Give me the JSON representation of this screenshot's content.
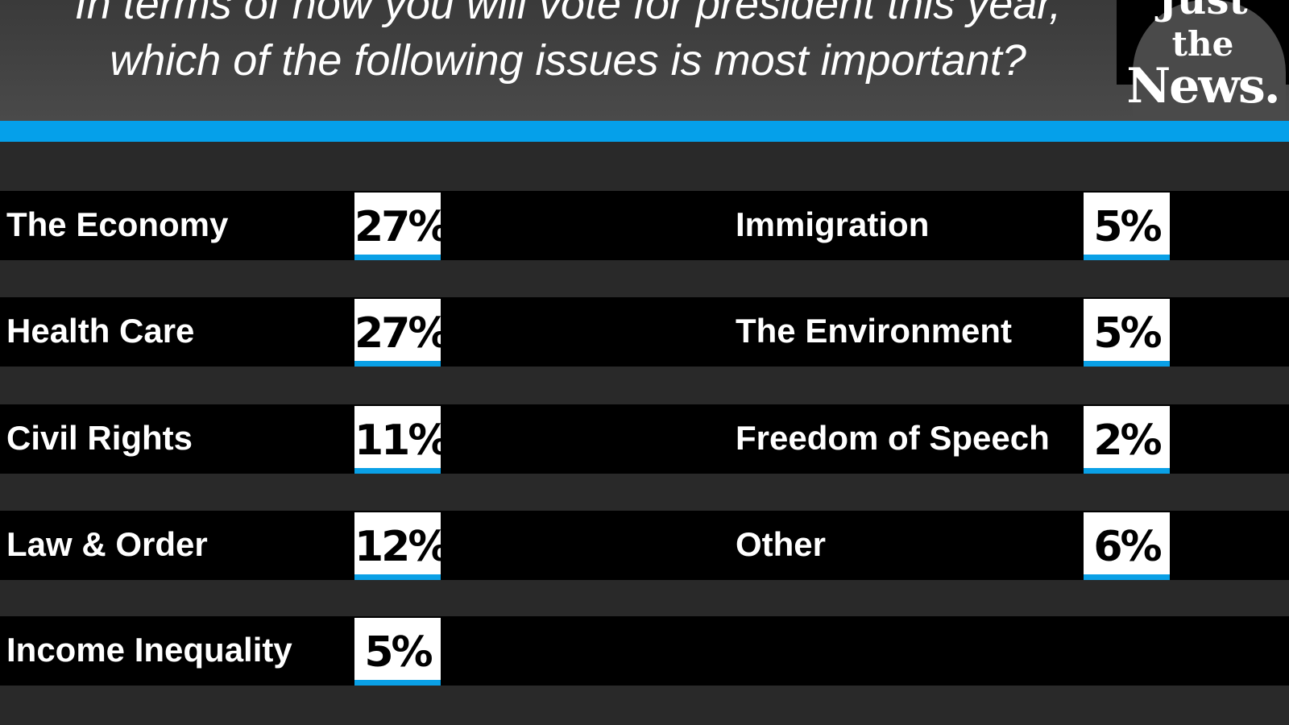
{
  "title": [
    "In terms of how you will vote for president this year,",
    "which of the following issues is most important?"
  ],
  "logo": {
    "line1": "Just",
    "line2": "the",
    "line3": "News."
  },
  "colors": {
    "accent": "#05a0ea",
    "row": "#000000",
    "background": "#292929"
  },
  "chart_data": {
    "type": "table",
    "title": "In terms of how you will vote for president this year, which of the following issues is most important?",
    "categories": [
      "The Economy",
      "Health Care",
      "Civil Rights",
      "Law & Order",
      "Income Inequality",
      "Immigration",
      "The Environment",
      "Freedom of Speech",
      "Other"
    ],
    "values": [
      27,
      27,
      11,
      12,
      5,
      5,
      5,
      2,
      6
    ],
    "labels": [
      "27%",
      "27%",
      "11%",
      "12%",
      "5%",
      "5%",
      "5%",
      "2%",
      "6%"
    ]
  }
}
